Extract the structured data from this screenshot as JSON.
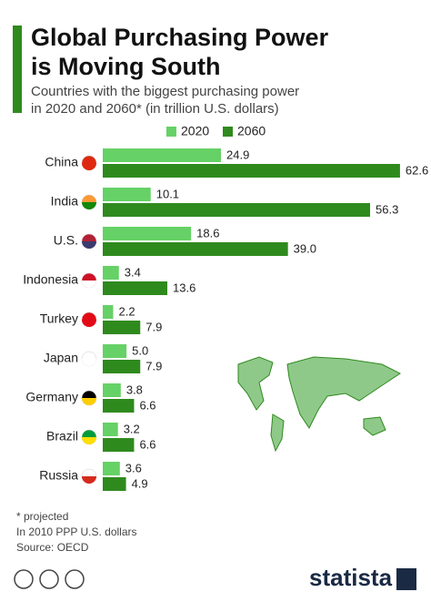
{
  "chart_data": {
    "type": "bar",
    "orientation": "horizontal",
    "title": [
      "Global Purchasing Power",
      "is Moving South"
    ],
    "subtitle": [
      "Countries with the biggest purchasing power",
      "in 2020 and 2060* (in trillion U.S. dollars)"
    ],
    "categories": [
      "China",
      "India",
      "U.S.",
      "Indonesia",
      "Turkey",
      "Japan",
      "Germany",
      "Brazil",
      "Russia"
    ],
    "series": [
      {
        "name": "2020",
        "color": "#66d166",
        "values": [
          24.9,
          10.1,
          18.6,
          3.4,
          2.2,
          5.0,
          3.8,
          3.2,
          3.6
        ],
        "value_labels": [
          "24.9",
          "10.1",
          "18.6",
          "3.4",
          "2.2",
          "5.0",
          "3.8",
          "3.2",
          "3.6"
        ]
      },
      {
        "name": "2060",
        "color": "#2f8a1e",
        "values": [
          62.6,
          56.3,
          39.0,
          13.6,
          7.9,
          7.9,
          6.6,
          6.6,
          4.9
        ],
        "value_labels": [
          "62.6",
          "56.3",
          "39.0",
          "13.6",
          "7.9",
          "7.9",
          "6.6",
          "6.6",
          "4.9"
        ]
      }
    ],
    "xlim": [
      0,
      63
    ],
    "footnotes": [
      "* projected",
      "In 2010 PPP U.S. dollars",
      "Source: OECD"
    ],
    "brand": "statista"
  }
}
